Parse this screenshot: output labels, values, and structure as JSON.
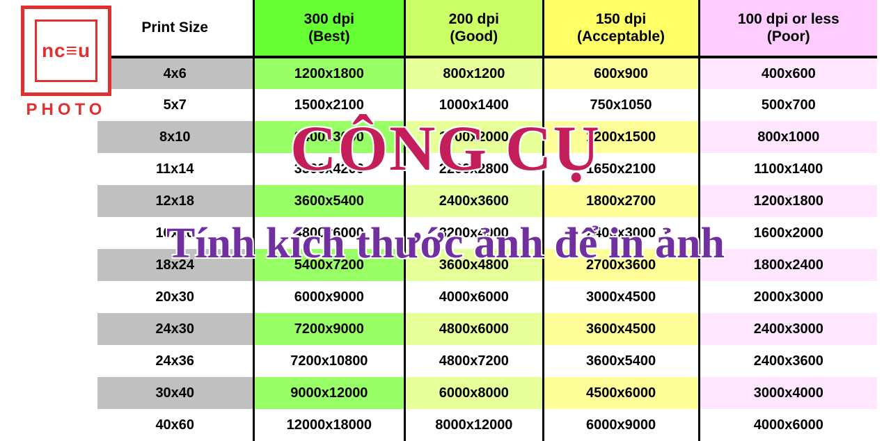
{
  "logo": {
    "inner_text": "nc≡u",
    "sub_text": "PHOTO"
  },
  "overlay": {
    "title": "CÔNG CỤ",
    "subtitle": "Tính kích thước ảnh để in ảnh",
    "title_color": "#c41e5a",
    "subtitle_color": "#7030a0"
  },
  "table": {
    "columns": [
      {
        "line1": "Print Size",
        "line2": "",
        "bg_header": "#ffffff",
        "bg_odd": "#c0c0c0",
        "bg_even": "#ffffff"
      },
      {
        "line1": "300 dpi",
        "line2": "(Best)",
        "bg_header": "#66ff33",
        "bg_odd": "#99ff66",
        "bg_even": "#ffffff"
      },
      {
        "line1": "200 dpi",
        "line2": "(Good)",
        "bg_header": "#ccff66",
        "bg_odd": "#e6ff99",
        "bg_even": "#ffffff"
      },
      {
        "line1": "150 dpi",
        "line2": "(Acceptable)",
        "bg_header": "#ffff66",
        "bg_odd": "#ffff99",
        "bg_even": "#ffffff"
      },
      {
        "line1": "100 dpi or less",
        "line2": "(Poor)",
        "bg_header": "#ffccff",
        "bg_odd": "#ffe6ff",
        "bg_even": "#ffffff"
      }
    ],
    "rows": [
      [
        "4x6",
        "1200x1800",
        "800x1200",
        "600x900",
        "400x600"
      ],
      [
        "5x7",
        "1500x2100",
        "1000x1400",
        "750x1050",
        "500x700"
      ],
      [
        "8x10",
        "2400x3000",
        "1600x2000",
        "1200x1500",
        "800x1000"
      ],
      [
        "11x14",
        "3300x4200",
        "2200x2800",
        "1650x2100",
        "1100x1400"
      ],
      [
        "12x18",
        "3600x5400",
        "2400x3600",
        "1800x2700",
        "1200x1800"
      ],
      [
        "16x20",
        "4800x6000",
        "3200x4000",
        "2400x3000",
        "1600x2000"
      ],
      [
        "18x24",
        "5400x7200",
        "3600x4800",
        "2700x3600",
        "1800x2400"
      ],
      [
        "20x30",
        "6000x9000",
        "4000x6000",
        "3000x4500",
        "2000x3000"
      ],
      [
        "24x30",
        "7200x9000",
        "4800x6000",
        "3600x4500",
        "2400x3000"
      ],
      [
        "24x36",
        "7200x10800",
        "4800x7200",
        "3600x5400",
        "2400x3600"
      ],
      [
        "30x40",
        "9000x12000",
        "6000x8000",
        "4500x6000",
        "3000x4000"
      ],
      [
        "40x60",
        "12000x18000",
        "8000x12000",
        "6000x9000",
        "4000x6000"
      ]
    ]
  }
}
